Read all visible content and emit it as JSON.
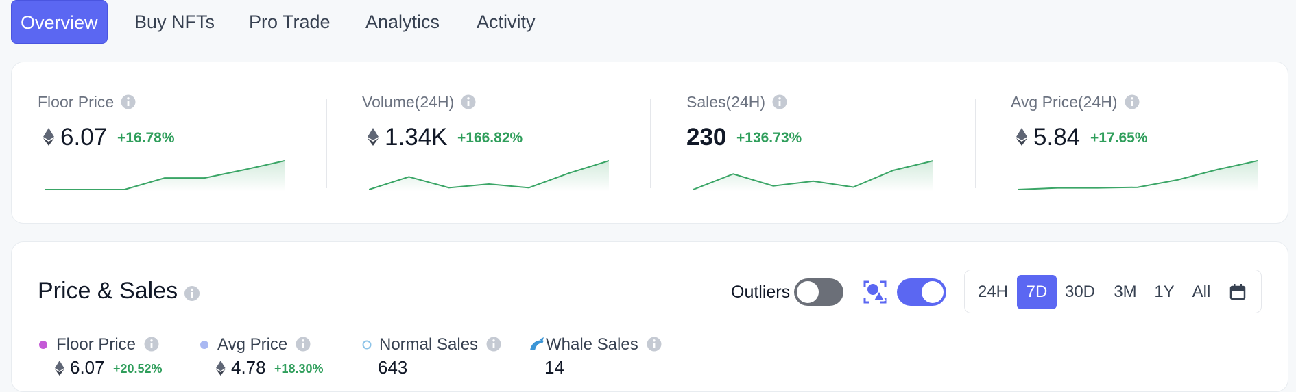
{
  "tabs": [
    {
      "label": "Overview",
      "active": true
    },
    {
      "label": "Buy NFTs",
      "active": false
    },
    {
      "label": "Pro Trade",
      "active": false
    },
    {
      "label": "Analytics",
      "active": false
    },
    {
      "label": "Activity",
      "active": false
    }
  ],
  "stats": [
    {
      "label": "Floor Price",
      "value": "6.07",
      "change": "+16.78%",
      "eth": true,
      "trend": [
        5.2,
        5.2,
        5.2,
        5.55,
        5.55,
        5.8,
        6.07
      ]
    },
    {
      "label": "Volume(24H)",
      "value": "1.34K",
      "change": "+166.82%",
      "eth": true,
      "trend": [
        0.55,
        0.9,
        0.6,
        0.7,
        0.6,
        1.0,
        1.34
      ]
    },
    {
      "label": "Sales(24H)",
      "value": "230",
      "change": "+136.73%",
      "eth": false,
      "trend": [
        110,
        175,
        125,
        145,
        120,
        190,
        230
      ]
    },
    {
      "label": "Avg Price(24H)",
      "value": "5.84",
      "change": "+17.65%",
      "eth": true,
      "trend": [
        4.95,
        5.0,
        5.0,
        5.02,
        5.25,
        5.57,
        5.84
      ]
    }
  ],
  "price_sales": {
    "title": "Price & Sales",
    "outliers_label": "Outliers",
    "outliers_on": false,
    "display_toggle_on": true,
    "ranges": [
      {
        "label": "24H",
        "active": false
      },
      {
        "label": "7D",
        "active": true
      },
      {
        "label": "30D",
        "active": false
      },
      {
        "label": "3M",
        "active": false
      },
      {
        "label": "1Y",
        "active": false
      },
      {
        "label": "All",
        "active": false
      }
    ],
    "legend": [
      {
        "name": "Floor Price",
        "marker": "dot",
        "color": "#c45ad6",
        "value": "6.07",
        "change": "+20.52%",
        "eth": true
      },
      {
        "name": "Avg Price",
        "marker": "dot",
        "color": "#a9b8f2",
        "value": "4.78",
        "change": "+18.30%",
        "eth": true
      },
      {
        "name": "Normal Sales",
        "marker": "ring",
        "color": "#8cc3e8",
        "value": "643",
        "eth": false
      },
      {
        "name": "Whale Sales",
        "marker": "whale",
        "color": "#3b95d6",
        "value": "14",
        "eth": false
      }
    ]
  }
}
